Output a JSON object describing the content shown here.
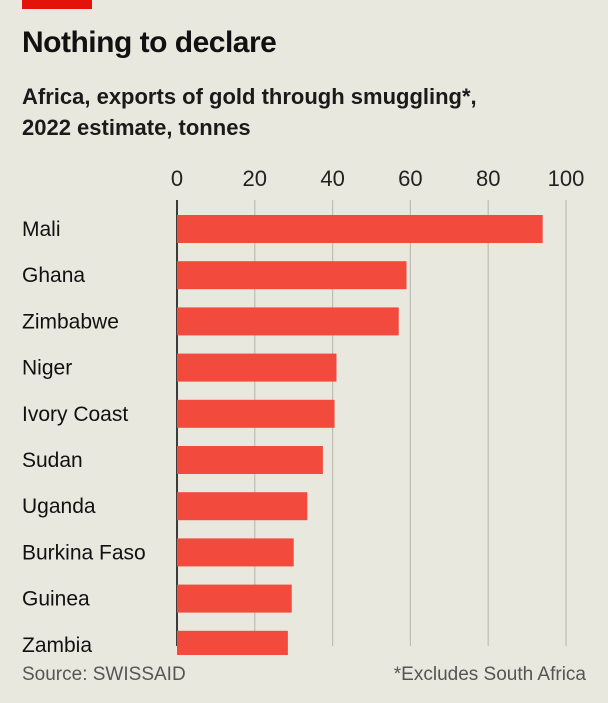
{
  "header": {
    "title": "Nothing to declare",
    "subtitle_line1": "Africa, exports of gold through smuggling*,",
    "subtitle_line2": "2022 estimate, tonnes"
  },
  "footer": {
    "source": "Source: SWISSAID",
    "note": "*Excludes South Africa"
  },
  "colors": {
    "accent": "#e3120b",
    "bar": "#f24a3d",
    "background": "#e9e8df",
    "grid": "#bdbcb5"
  },
  "chart_data": {
    "type": "bar",
    "orientation": "horizontal",
    "categories": [
      "Mali",
      "Ghana",
      "Zimbabwe",
      "Niger",
      "Ivory Coast",
      "Sudan",
      "Uganda",
      "Burkina Faso",
      "Guinea",
      "Zambia"
    ],
    "values": [
      94,
      59,
      57,
      41,
      40.5,
      37.5,
      33.5,
      30,
      29.5,
      28.5
    ],
    "xlim": [
      0,
      100
    ],
    "xticks": [
      0,
      20,
      40,
      60,
      80,
      100
    ],
    "xaxis_position": "top",
    "grid": true,
    "xlabel": "",
    "ylabel": ""
  }
}
